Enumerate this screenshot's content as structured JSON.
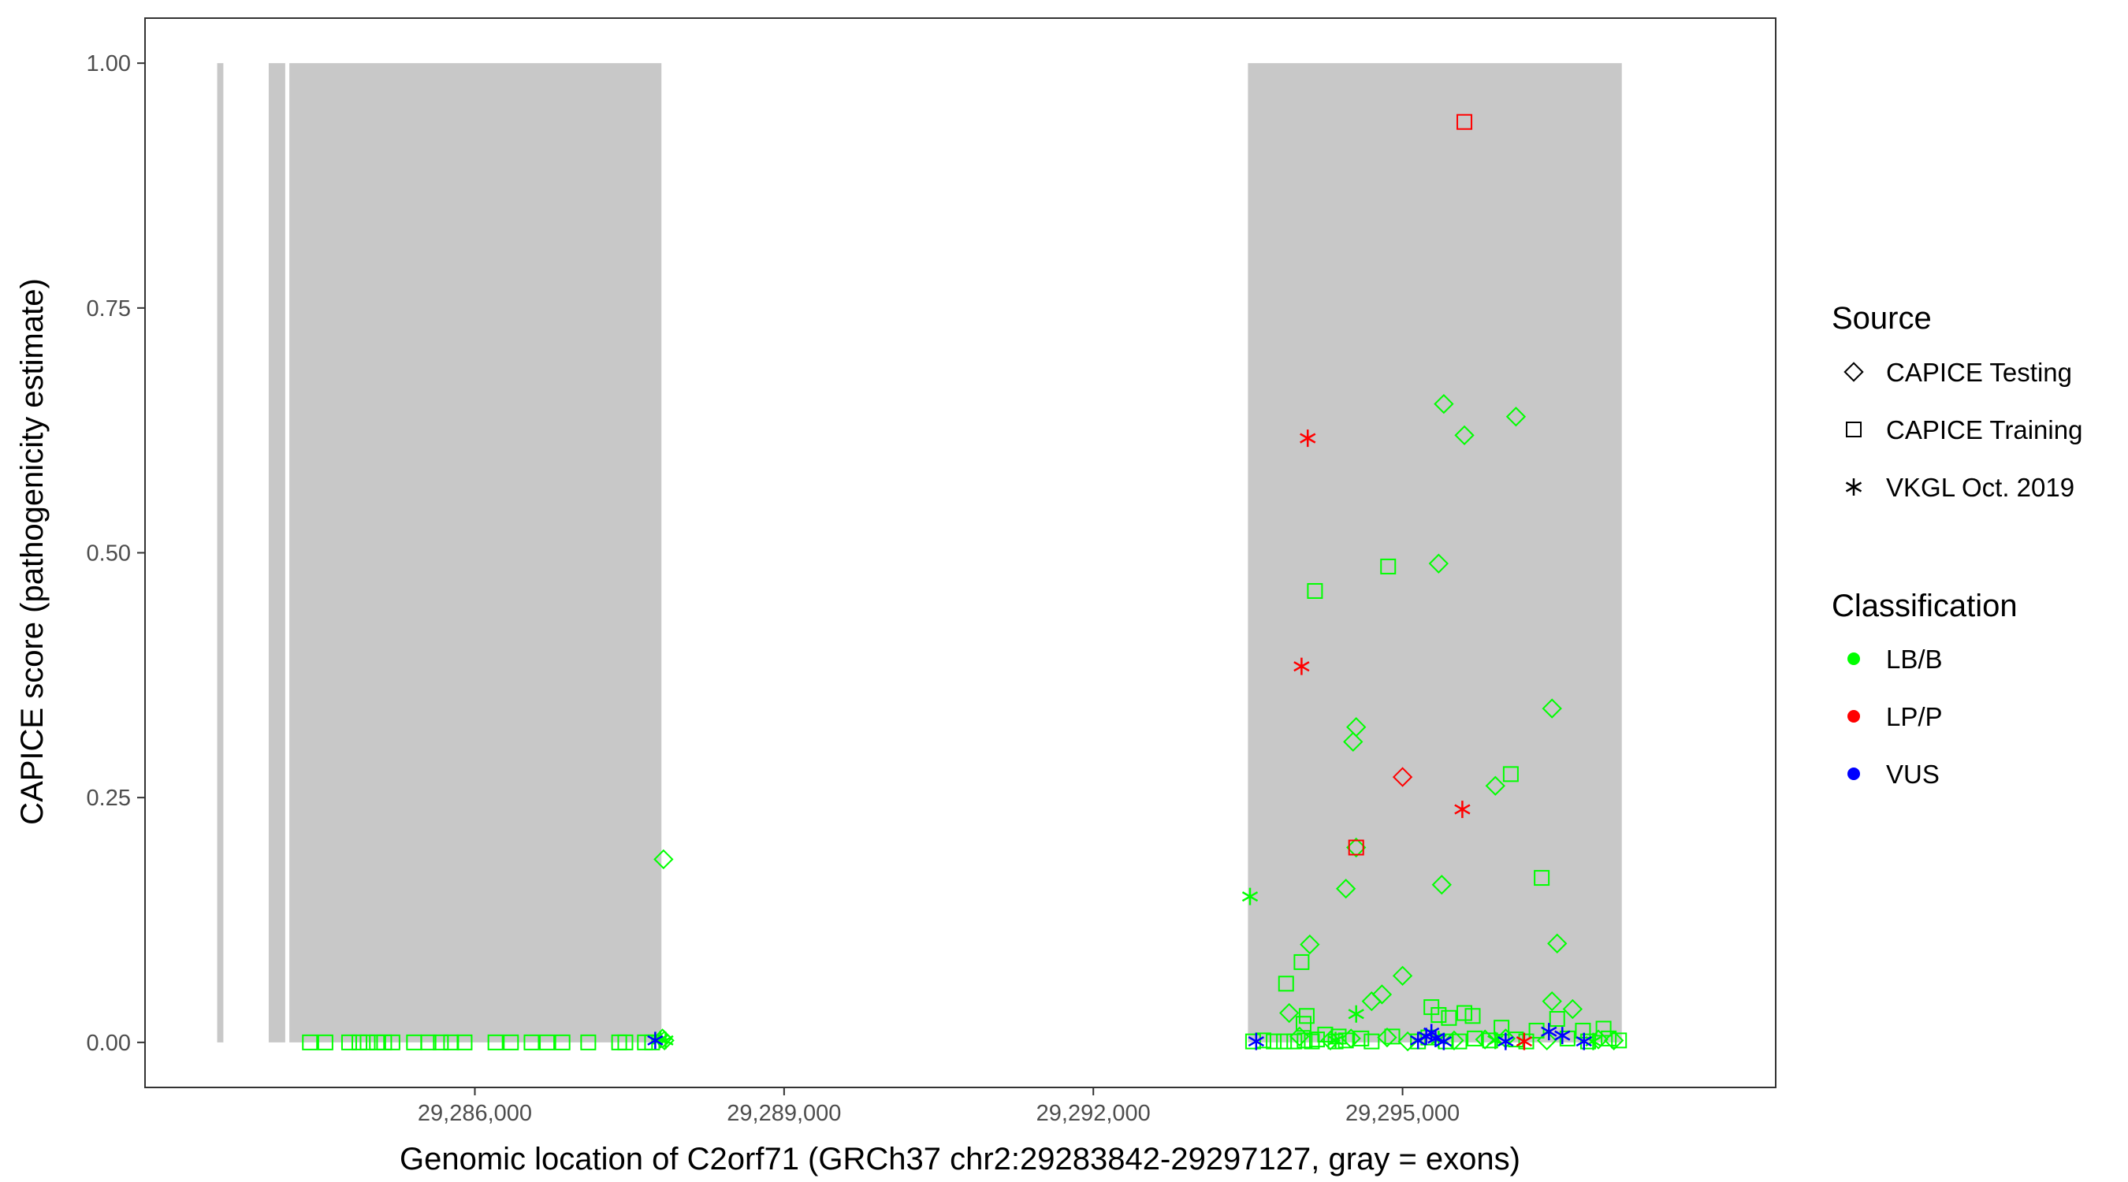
{
  "chart_data": {
    "type": "scatter",
    "xlabel": "Genomic location of C2orf71 (GRCh37 chr2:29283842-29297127, gray = exons)",
    "ylabel": "CAPICE score (pathogenicity estimate)",
    "xlim": [
      29282800,
      29298620
    ],
    "ylim": [
      -0.046,
      1.046
    ],
    "x_ticks": [
      29286000,
      29289000,
      29292000,
      29295000
    ],
    "x_tick_labels": [
      "29,286,000",
      "29,289,000",
      "29,292,000",
      "29,295,000"
    ],
    "y_ticks": [
      0,
      0.25,
      0.5,
      0.75,
      1.0
    ],
    "y_tick_labels": [
      "0.00",
      "0.25",
      "0.50",
      "0.75",
      "1.00"
    ],
    "grid": false,
    "exons": [
      {
        "start": 29283500,
        "end": 29283560
      },
      {
        "start": 29284000,
        "end": 29284160
      },
      {
        "start": 29284200,
        "end": 29287810
      },
      {
        "start": 29293500,
        "end": 29297127
      }
    ],
    "exon_color": "#c8c8c8",
    "shape_legend": {
      "title": "Source",
      "items": [
        {
          "label": "CAPICE Testing",
          "shape": "diamond"
        },
        {
          "label": "CAPICE Training",
          "shape": "square"
        },
        {
          "label": "VKGL Oct. 2019",
          "shape": "asterisk"
        }
      ]
    },
    "color_legend": {
      "title": "Classification",
      "items": [
        {
          "label": "LB/B",
          "color": "#00ff00"
        },
        {
          "label": "LP/P",
          "color": "#ff0000"
        },
        {
          "label": "VUS",
          "color": "#0000ff"
        }
      ]
    },
    "legend_position": "right",
    "series": [
      {
        "shape": "diamond",
        "classification": "LB/B",
        "color": "#00ff00",
        "points": [
          [
            29287830,
            0.187
          ],
          [
            29287820,
            0.004
          ],
          [
            29287840,
            0.002
          ],
          [
            29295400,
            0.652
          ],
          [
            29296100,
            0.639
          ],
          [
            29295600,
            0.62
          ],
          [
            29295350,
            0.489
          ],
          [
            29296450,
            0.341
          ],
          [
            29294550,
            0.322
          ],
          [
            29294520,
            0.307
          ],
          [
            29295900,
            0.262
          ],
          [
            29294550,
            0.199
          ],
          [
            29295380,
            0.161
          ],
          [
            29294450,
            0.157
          ],
          [
            29296500,
            0.101
          ],
          [
            29294100,
            0.1
          ],
          [
            29295000,
            0.068
          ],
          [
            29294800,
            0.049
          ],
          [
            29294700,
            0.042
          ],
          [
            29296450,
            0.042
          ],
          [
            29296650,
            0.034
          ],
          [
            29293900,
            0.03
          ],
          [
            29294000,
            0.006
          ],
          [
            29294300,
            0.002
          ],
          [
            29294500,
            0.004
          ],
          [
            29294850,
            0.005
          ],
          [
            29295050,
            0.001
          ],
          [
            29295500,
            0.002
          ],
          [
            29295800,
            0.003
          ],
          [
            29296000,
            0.004
          ],
          [
            29296400,
            0.002
          ],
          [
            29296900,
            0.003
          ],
          [
            29297050,
            0.002
          ]
        ]
      },
      {
        "shape": "diamond",
        "classification": "LP/P",
        "color": "#ff0000",
        "points": [
          [
            29295000,
            0.271
          ]
        ]
      },
      {
        "shape": "square",
        "classification": "LB/B",
        "color": "#00ff00",
        "points": [
          [
            29284400,
            0
          ],
          [
            29284550,
            0
          ],
          [
            29284780,
            0
          ],
          [
            29284880,
            0
          ],
          [
            29284960,
            0
          ],
          [
            29285050,
            0
          ],
          [
            29285120,
            0
          ],
          [
            29285200,
            0
          ],
          [
            29285410,
            0
          ],
          [
            29285550,
            0
          ],
          [
            29285670,
            0
          ],
          [
            29285770,
            0
          ],
          [
            29285900,
            0
          ],
          [
            29286200,
            0
          ],
          [
            29286350,
            0
          ],
          [
            29286550,
            0
          ],
          [
            29286700,
            0
          ],
          [
            29286850,
            0
          ],
          [
            29287100,
            0
          ],
          [
            29287400,
            0
          ],
          [
            29287460,
            0
          ],
          [
            29287650,
            0
          ],
          [
            29287720,
            0
          ],
          [
            29294860,
            0.486
          ],
          [
            29294150,
            0.461
          ],
          [
            29296050,
            0.274
          ],
          [
            29296350,
            0.168
          ],
          [
            29294020,
            0.082
          ],
          [
            29293870,
            0.06
          ],
          [
            29294070,
            0.027
          ],
          [
            29294040,
            0.019
          ],
          [
            29295280,
            0.036
          ],
          [
            29295350,
            0.028
          ],
          [
            29295450,
            0.025
          ],
          [
            29295600,
            0.03
          ],
          [
            29295680,
            0.027
          ],
          [
            29295960,
            0.015
          ],
          [
            29296300,
            0.012
          ],
          [
            29296750,
            0.012
          ],
          [
            29296500,
            0.024
          ],
          [
            29296950,
            0.014
          ],
          [
            29294170,
            0.003
          ],
          [
            29294250,
            0.008
          ],
          [
            29294380,
            0.006
          ],
          [
            29294600,
            0.004
          ],
          [
            29294900,
            0.006
          ],
          [
            29295250,
            0.005
          ],
          [
            29295700,
            0.004
          ],
          [
            29296100,
            0.003
          ],
          [
            29296600,
            0.004
          ],
          [
            29297000,
            0.004
          ],
          [
            29293550,
            0.001
          ],
          [
            29293650,
            0.002
          ],
          [
            29293750,
            0.001
          ],
          [
            29293850,
            0.001
          ],
          [
            29293950,
            0.001
          ],
          [
            29294050,
            0.002
          ],
          [
            29294120,
            0.001
          ],
          [
            29294350,
            0.001
          ],
          [
            29294450,
            0.002
          ],
          [
            29294700,
            0.001
          ],
          [
            29295150,
            0.001
          ],
          [
            29295420,
            0.001
          ],
          [
            29295550,
            0.001
          ],
          [
            29295850,
            0.002
          ],
          [
            29296200,
            0.001
          ],
          [
            29296800,
            0.001
          ],
          [
            29297100,
            0.002
          ]
        ]
      },
      {
        "shape": "square",
        "classification": "LP/P",
        "color": "#ff0000",
        "points": [
          [
            29295600,
            0.94
          ],
          [
            29294550,
            0.199
          ]
        ]
      },
      {
        "shape": "asterisk",
        "classification": "LB/B",
        "color": "#00ff00",
        "points": [
          [
            29293520,
            0.149
          ],
          [
            29294550,
            0.029
          ],
          [
            29287800,
            0.003
          ],
          [
            29287850,
            0.002
          ],
          [
            29294350,
            0.002
          ],
          [
            29295350,
            0.003
          ],
          [
            29296850,
            0.001
          ],
          [
            29295900,
            0.002
          ]
        ]
      },
      {
        "shape": "asterisk",
        "classification": "LP/P",
        "color": "#ff0000",
        "points": [
          [
            29294080,
            0.617
          ],
          [
            29294020,
            0.384
          ],
          [
            29295580,
            0.238
          ],
          [
            29296180,
            0.001
          ]
        ]
      },
      {
        "shape": "asterisk",
        "classification": "VUS",
        "color": "#0000ff",
        "points": [
          [
            29287750,
            0.002
          ],
          [
            29293580,
            0.001
          ],
          [
            29295150,
            0.002
          ],
          [
            29295230,
            0.006
          ],
          [
            29295280,
            0.01
          ],
          [
            29295320,
            0.004
          ],
          [
            29295400,
            0.001
          ],
          [
            29296000,
            0.001
          ],
          [
            29296420,
            0.011
          ],
          [
            29296550,
            0.007
          ],
          [
            29296760,
            0.001
          ]
        ]
      }
    ]
  }
}
